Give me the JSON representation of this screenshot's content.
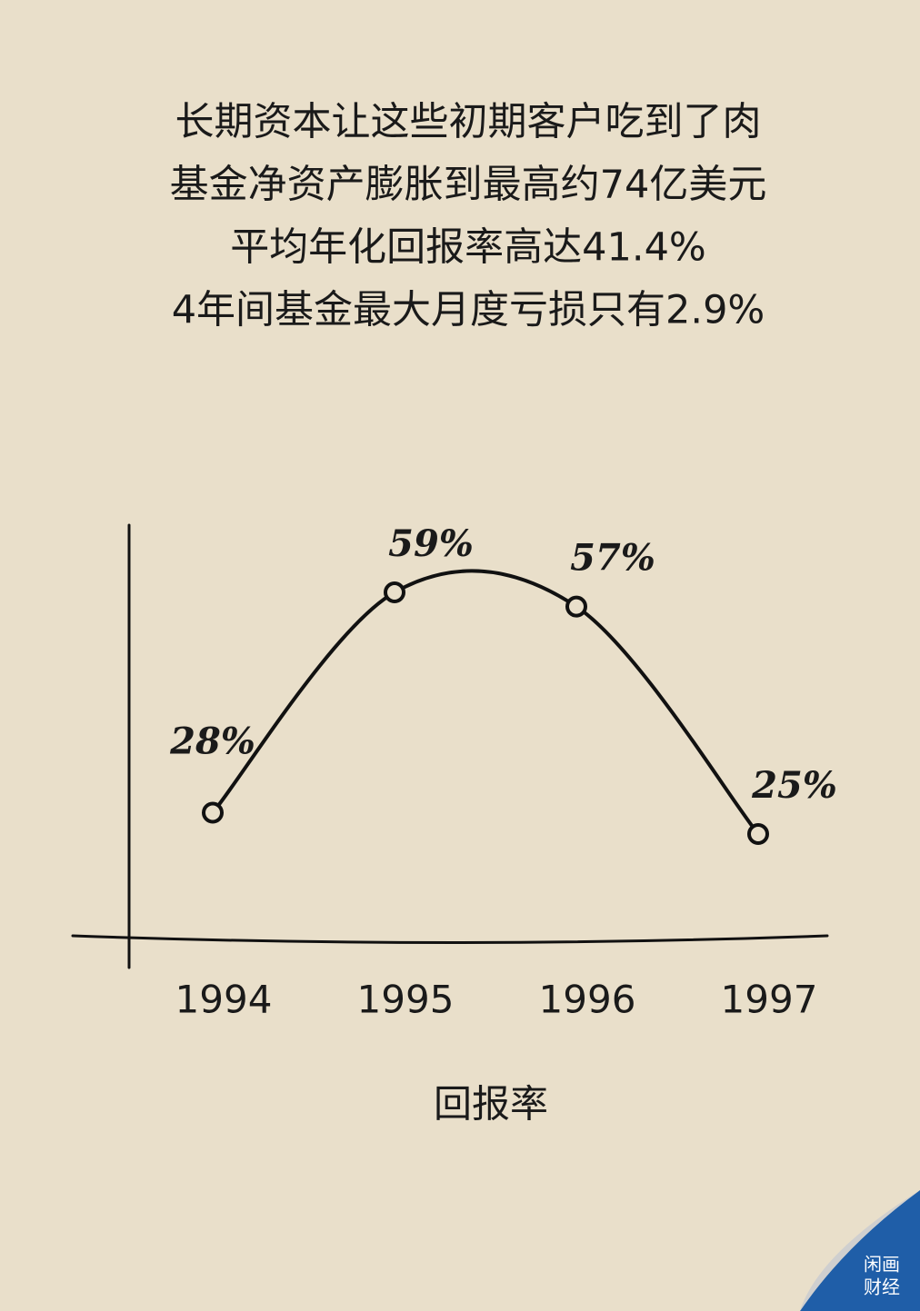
{
  "chart_data": {
    "type": "line",
    "title": [
      "长期资本让这些初期客户吃到了肉",
      "基金净资产膨胀到最高约74亿美元",
      "平均年化回报率高达41.4%",
      "4年间基金最大月度亏损只有2.9%"
    ],
    "x_label": "回报率",
    "categories": [
      "1994",
      "1995",
      "1996",
      "1997"
    ],
    "values": [
      28,
      59,
      57,
      25
    ],
    "value_labels": [
      "28%",
      "59%",
      "57%",
      "25%"
    ],
    "color": "#111111"
  },
  "logo": [
    "闲画",
    "财经"
  ]
}
